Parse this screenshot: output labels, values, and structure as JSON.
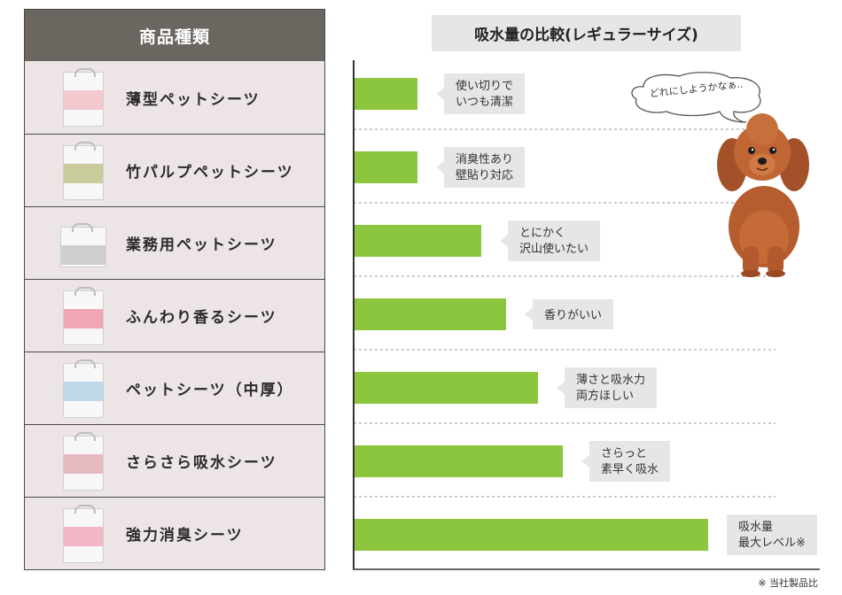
{
  "table": {
    "header": "商品種類",
    "products": [
      {
        "name": "薄型ペットシーツ",
        "band_color": "#f3c9cf"
      },
      {
        "name": "竹パルプペットシーツ",
        "band_color": "#c9cc9a"
      },
      {
        "name": "業務用ペットシーツ",
        "band_color": "#cfcfcf"
      },
      {
        "name": "ふんわり香るシーツ",
        "band_color": "#f0a6b4"
      },
      {
        "name": "ペットシーツ（中厚）",
        "band_color": "#bfd8ea"
      },
      {
        "name": "さらさら吸水シーツ",
        "band_color": "#e6b8c0"
      },
      {
        "name": "強力消臭シーツ",
        "band_color": "#f4b7c8"
      }
    ]
  },
  "chart_data": {
    "type": "bar",
    "orientation": "horizontal",
    "title": "吸水量の比較(レギュラーサイズ)",
    "categories": [
      "薄型ペットシーツ",
      "竹パルプペットシーツ",
      "業務用ペットシーツ",
      "ふんわり香るシーツ",
      "ペットシーツ（中厚）",
      "さらさら吸水シーツ",
      "強力消臭シーツ"
    ],
    "values": [
      18,
      18,
      36,
      43,
      52,
      59,
      100
    ],
    "value_scale": "relative, maximum = 100",
    "callouts": [
      [
        "使い切りで",
        "いつも清潔"
      ],
      [
        "消臭性あり",
        "壁貼り対応"
      ],
      [
        "とにかく",
        "沢山使いたい"
      ],
      [
        "香りがいい"
      ],
      [
        "薄さと吸水力",
        "両方ほしい"
      ],
      [
        "さらっと",
        "素早く吸水"
      ],
      [
        "吸水量",
        "最大レベル※"
      ]
    ],
    "bar_color": "#8cc63f",
    "callout_color": "#e6e6e6",
    "grid": "dashed separators between rows",
    "footnote": "※ 当社製品比"
  },
  "thought": "どれにしようかなぁ..",
  "icons": {
    "dog": "poodle-illustration",
    "bubble": "thought-bubble-icon"
  }
}
